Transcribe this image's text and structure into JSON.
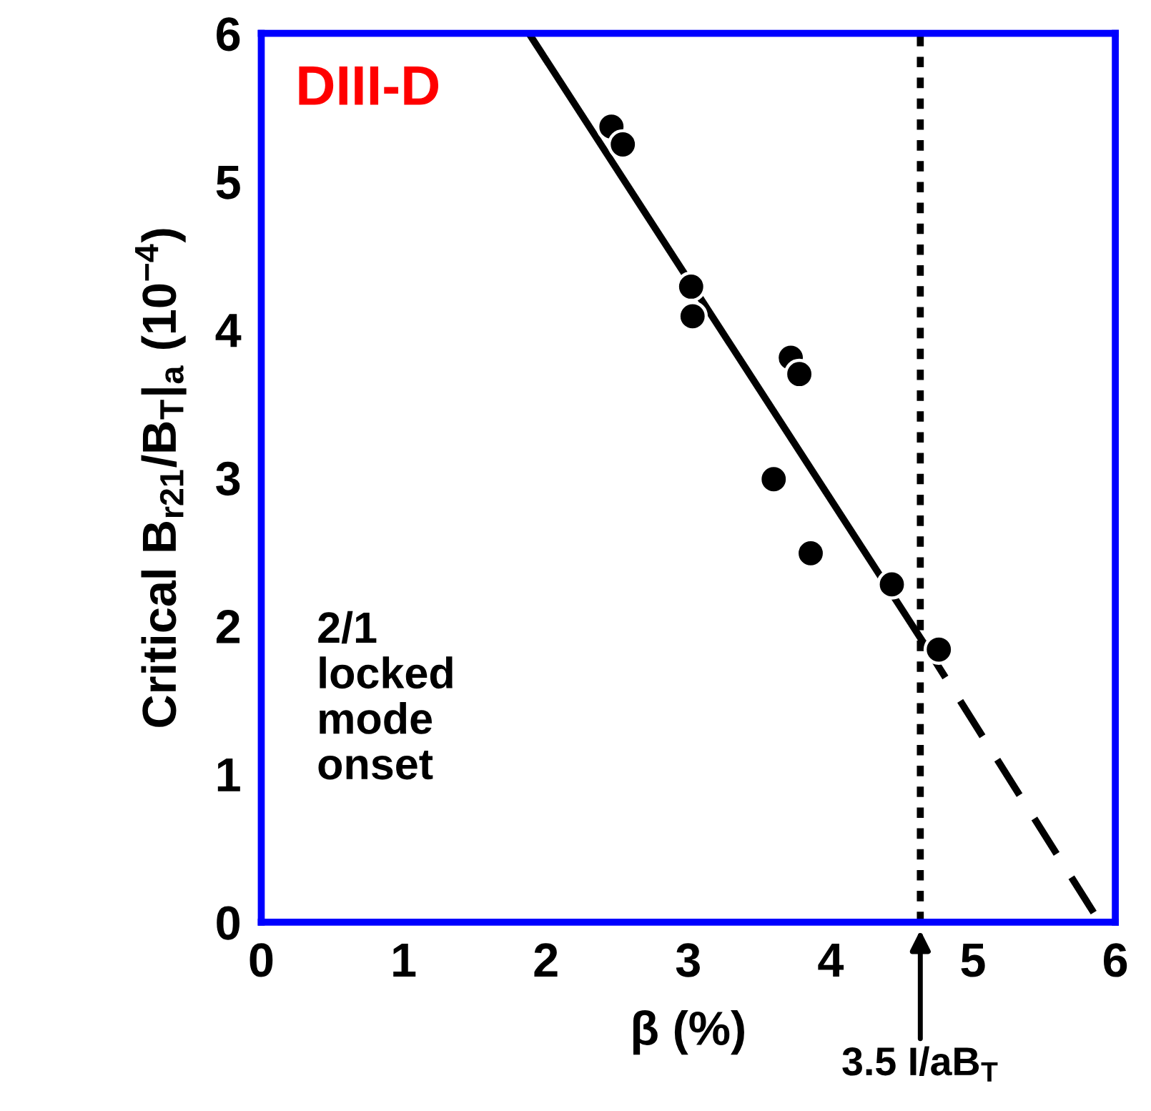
{
  "chart_data": {
    "type": "scatter",
    "xlabel": "β (%)",
    "ylabel": "Critical B$_{r21}$/B$_{T}$|$_{a}$ (10$^{−4}$)",
    "xlim": [
      0,
      6
    ],
    "ylim": [
      0,
      6
    ],
    "xticks": [
      0,
      1,
      2,
      3,
      4,
      5,
      6
    ],
    "yticks": [
      0,
      1,
      2,
      3,
      4,
      5,
      6
    ],
    "grid": false,
    "series": [
      {
        "marker": "circle",
        "color": "#000000",
        "x": [
          2.46,
          2.54,
          3.02,
          3.03,
          3.72,
          3.78,
          3.6,
          3.86,
          4.43,
          4.76
        ],
        "values": [
          5.37,
          5.25,
          4.29,
          4.09,
          3.81,
          3.7,
          2.99,
          2.49,
          2.28,
          1.84
        ]
      },
      {
        "type": "line",
        "marker": "none",
        "color": "#000000",
        "line_style": "solid",
        "x": [
          1.88,
          4.65
        ],
        "values": [
          6,
          1.89
        ]
      },
      {
        "type": "line",
        "marker": "none",
        "color": "#000000",
        "line_style": "dashed",
        "x": [
          4.65,
          5.89
        ],
        "values": [
          1.89,
          0
        ]
      }
    ],
    "ref_lines": [
      {
        "axis": "x",
        "value": 4.63,
        "label": "3.5 I/aB$_{T}$",
        "line_style": "dotted",
        "color": "#000000"
      }
    ],
    "annotations": [
      "DIII-D",
      "2/1\nlocked\nmode\nonset"
    ]
  }
}
